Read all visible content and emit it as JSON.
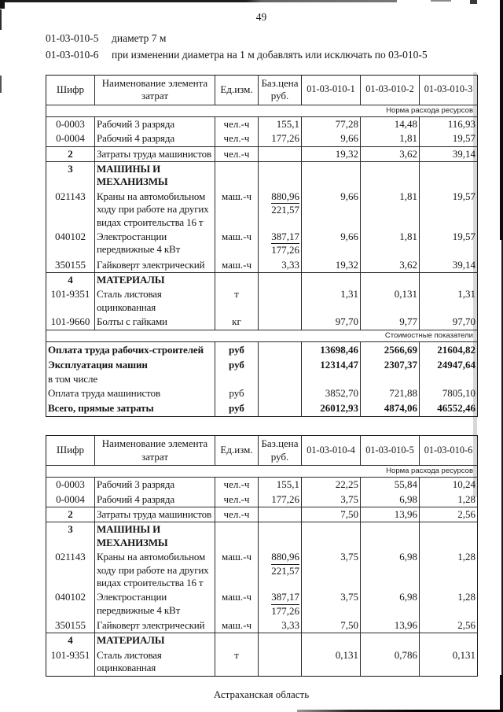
{
  "page": {
    "number": "49",
    "footer": "Астраханская область"
  },
  "intro": [
    {
      "code": "01-03-010-5",
      "text": "диаметр 7 м"
    },
    {
      "code": "01-03-010-6",
      "text": "при изменении диаметра на 1 м добавлять или исключать по 03-010-5"
    }
  ],
  "tables": [
    {
      "header": {
        "code": "Шифр",
        "name": "Наименование элемента\nзатрат",
        "unit": "Ед.изм.",
        "base": "Баз.цена\nруб.",
        "norm_cols": [
          "01-03-010-1",
          "01-03-010-2",
          "01-03-010-3"
        ]
      },
      "norm_band": "Норма расхода ресурсов",
      "rows": [
        {
          "code": "0-0003",
          "name": "Рабочий 3 разряда",
          "unit": "чел.-ч",
          "base": "155,1",
          "values": [
            "77,28",
            "14,48",
            "116,93"
          ]
        },
        {
          "code": "0-0004",
          "name": "Рабочий 4 разряда",
          "unit": "чел.-ч",
          "base": "177,26",
          "values": [
            "9,66",
            "1,81",
            "19,57"
          ]
        },
        {
          "code": "2",
          "code_bold": true,
          "name": "Затраты труда машинистов",
          "unit": "чел.-ч",
          "base": "",
          "values": [
            "19,32",
            "3,62",
            "39,14"
          ],
          "rule_top": true
        },
        {
          "code": "3",
          "code_bold": true,
          "name": "МАШИНЫ И МЕХАНИЗМЫ",
          "section": true,
          "rule_top": true
        },
        {
          "code": "021143",
          "name": "Краны на автомобильном ходу при работе на других видах строительства 16 т",
          "unit": "маш.-ч",
          "base_frac": {
            "top": "880,96",
            "bottom": "221,57"
          },
          "values": [
            "9,66",
            "1,81",
            "19,57"
          ]
        },
        {
          "code": "040102",
          "name": "Электростанции передвижные 4 кВт",
          "unit": "маш.-ч",
          "base_frac": {
            "top": "387,17",
            "bottom": "177,26"
          },
          "values": [
            "9,66",
            "1,81",
            "19,57"
          ]
        },
        {
          "code": "350155",
          "name": "Гайковерт электрический",
          "unit": "маш.-ч",
          "base": "3,33",
          "values": [
            "19,32",
            "3,62",
            "39,14"
          ]
        },
        {
          "code": "4",
          "code_bold": true,
          "name": "МАТЕРИАЛЫ",
          "section": true,
          "rule_top": true
        },
        {
          "code": "101-9351",
          "name": "Сталь листовая оцинкованная",
          "unit": "т",
          "base": "",
          "values": [
            "1,31",
            "0,131",
            "1,31"
          ]
        },
        {
          "code": "101-9660",
          "name": "Болты с гайками",
          "unit": "кг",
          "base": "",
          "values": [
            "97,70",
            "9,77",
            "97,70"
          ]
        }
      ],
      "cost_band": "Стоимостные показатели",
      "cost_rows": [
        {
          "label": "Оплата труда рабочих-строителей",
          "unit": "руб",
          "values": [
            "13698,46",
            "2566,69",
            "21604,82"
          ],
          "bold": true
        },
        {
          "label": "Эксплуатация машин",
          "unit": "руб",
          "values": [
            "12314,47",
            "2307,37",
            "24947,64"
          ],
          "bold": true
        },
        {
          "label": "в том числе",
          "unit": "",
          "values": [
            "",
            "",
            ""
          ],
          "incl": true
        },
        {
          "label": "Оплата труда машинистов",
          "unit": "руб",
          "values": [
            "3852,70",
            "721,88",
            "7805,10"
          ]
        },
        {
          "label": "Всего, прямые затраты",
          "unit": "руб",
          "values": [
            "26012,93",
            "4874,06",
            "46552,46"
          ],
          "bold": true
        }
      ]
    },
    {
      "header": {
        "code": "Шифр",
        "name": "Наименование элемента\nзатрат",
        "unit": "Ед.изм.",
        "base": "Баз.цена\nруб.",
        "norm_cols": [
          "01-03-010-4",
          "01-03-010-5",
          "01-03-010-6"
        ]
      },
      "norm_band": "Норма расхода ресурсов",
      "rows": [
        {
          "code": "0-0003",
          "name": "Рабочий 3 разряда",
          "unit": "чел.-ч",
          "base": "155,1",
          "values": [
            "22,25",
            "55,84",
            "10,24"
          ]
        },
        {
          "code": "0-0004",
          "name": "Рабочий 4 разряда",
          "unit": "чел.-ч",
          "base": "177,26",
          "values": [
            "3,75",
            "6,98",
            "1,28"
          ]
        },
        {
          "code": "2",
          "code_bold": true,
          "name": "Затраты труда машинистов",
          "unit": "чел.-ч",
          "base": "",
          "values": [
            "7,50",
            "13,96",
            "2,56"
          ],
          "rule_top": true
        },
        {
          "code": "3",
          "code_bold": true,
          "name": "МАШИНЫ И МЕХАНИЗМЫ",
          "section": true,
          "rule_top": true
        },
        {
          "code": "021143",
          "name": "Краны на автомобильном ходу при работе на других видах строительства 16 т",
          "unit": "маш.-ч",
          "base_frac": {
            "top": "880,96",
            "bottom": "221,57"
          },
          "values": [
            "3,75",
            "6,98",
            "1,28"
          ]
        },
        {
          "code": "040102",
          "name": "Электростанции передвижные 4 кВт",
          "unit": "маш.-ч",
          "base_frac": {
            "top": "387,17",
            "bottom": "177,26"
          },
          "values": [
            "3,75",
            "6,98",
            "1,28"
          ]
        },
        {
          "code": "350155",
          "name": "Гайковерт электрический",
          "unit": "маш.-ч",
          "base": "3,33",
          "values": [
            "7,50",
            "13,96",
            "2,56"
          ]
        },
        {
          "code": "4",
          "code_bold": true,
          "name": "МАТЕРИАЛЫ",
          "section": true,
          "rule_top": true
        },
        {
          "code": "101-9351",
          "name": "Сталь листовая оцинкованная",
          "unit": "т",
          "base": "",
          "values": [
            "0,131",
            "0,786",
            "0,131"
          ]
        }
      ]
    }
  ]
}
